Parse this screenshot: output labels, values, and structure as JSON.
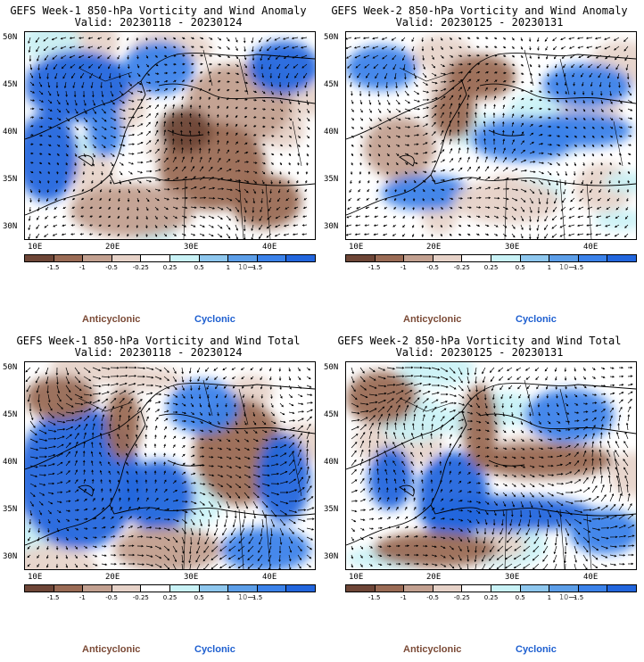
{
  "colors": {
    "anticyclonic": "#7b4a36",
    "cyclonic": "#1e5fd0",
    "colorbar": [
      "#6e4637",
      "#9a6b55",
      "#c2a090",
      "#e6d2c8",
      "#ffffff",
      "#c9f2f6",
      "#8ec7ee",
      "#5c9ee8",
      "#3b82ea",
      "#2266dd"
    ],
    "land_outline": "#000000"
  },
  "axes": {
    "lat_labels": [
      "50N",
      "45N",
      "40N",
      "35N",
      "30N"
    ],
    "lon_labels": [
      "10E",
      "20E",
      "30E",
      "40E"
    ]
  },
  "colorbar_labels": [
    "-1.5",
    "-1",
    "-0.5",
    "-0.25",
    "0.25",
    "0.5",
    "1",
    "1.5"
  ],
  "vector_ref": "10",
  "legend": {
    "anticyclonic": "Anticyclonic",
    "cyclonic": "Cyclonic"
  },
  "panels": [
    {
      "title": "GEFS Week-1 850-hPa Vorticity and Wind Anomaly",
      "valid": "Valid: 20230118 - 20230124"
    },
    {
      "title": "GEFS Week-2 850-hPa Vorticity and Wind Anomaly",
      "valid": "Valid: 20230125 - 20230131"
    },
    {
      "title": "GEFS Week-1 850-hPa Vorticity and Wind Total",
      "valid": "Valid: 20230118 - 20230124"
    },
    {
      "title": "GEFS Week-2 850-hPa Vorticity and Wind Total",
      "valid": "Valid: 20230125 - 20230131"
    }
  ]
}
